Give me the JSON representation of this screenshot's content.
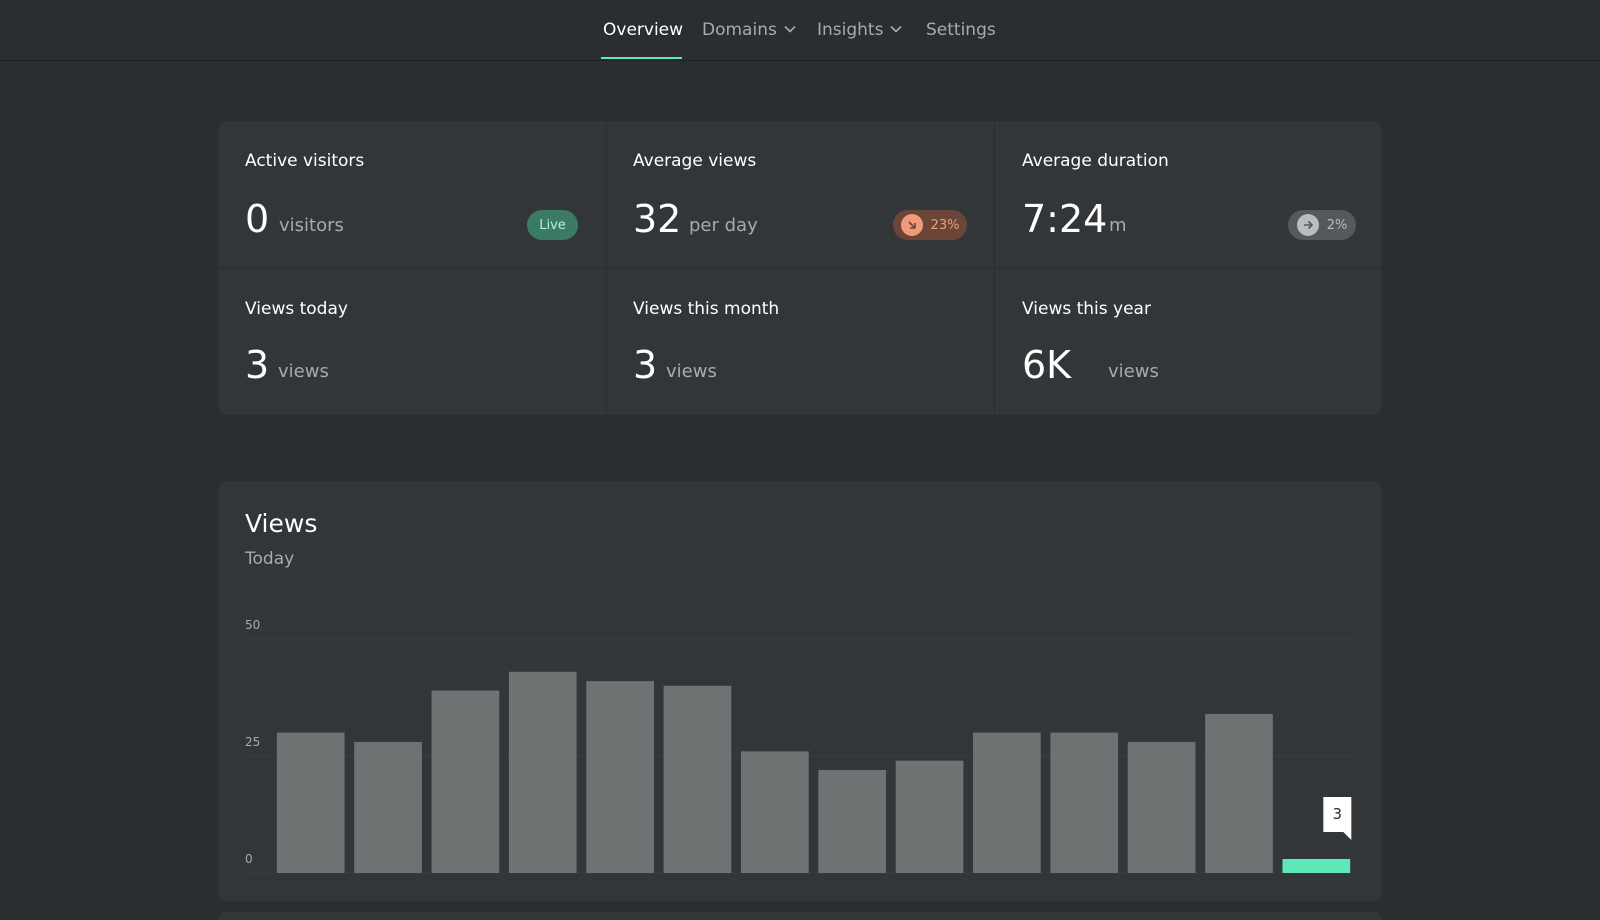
{
  "nav": {
    "items": [
      {
        "label": "Overview",
        "active": true,
        "dropdown": false
      },
      {
        "label": "Domains",
        "active": false,
        "dropdown": true
      },
      {
        "label": "Insights",
        "active": false,
        "dropdown": true
      },
      {
        "label": "Settings",
        "active": false,
        "dropdown": false
      }
    ],
    "accent_color": "#5ee8b7"
  },
  "stats": [
    {
      "label": "Active visitors",
      "value": "0",
      "unit": "visitors",
      "badge": {
        "type": "live",
        "text": "Live"
      }
    },
    {
      "label": "Average views",
      "value": "32",
      "unit": "per day",
      "badge": {
        "type": "down",
        "text": "23%",
        "icon": "arrow-down-right-icon"
      }
    },
    {
      "label": "Average duration",
      "value": "7:24",
      "unit": "m",
      "badge": {
        "type": "neutral",
        "text": "2%",
        "icon": "arrow-right-icon"
      }
    },
    {
      "label": "Views today",
      "value": "3",
      "unit": "views"
    },
    {
      "label": "Views this month",
      "value": "3",
      "unit": "views"
    },
    {
      "label": "Views this year",
      "value": "6K",
      "unit": "views"
    }
  ],
  "views_card": {
    "title": "Views",
    "subtitle": "Today"
  },
  "chart_data": {
    "type": "bar",
    "values": [
      30,
      28,
      39,
      43,
      41,
      40,
      26,
      22,
      24,
      30,
      30,
      28,
      34,
      3
    ],
    "ylim": [
      0,
      50
    ],
    "yticks": [
      0,
      25,
      50
    ],
    "ytick_labels": [
      "0",
      "25",
      "50"
    ],
    "grid": true,
    "bar_color": "#6e7273",
    "highlight_color": "#5ee8b7",
    "highlight_index": 13,
    "tooltip": {
      "index": 13,
      "text": "3"
    }
  }
}
